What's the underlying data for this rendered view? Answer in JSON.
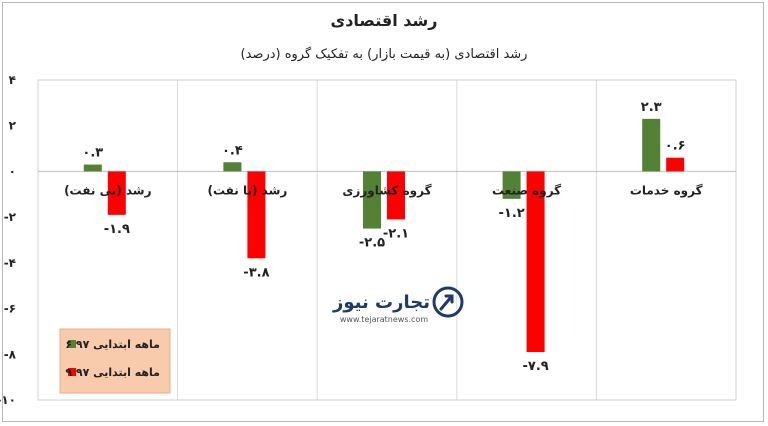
{
  "chart_data": {
    "type": "bar",
    "title": "رشد اقتصادی",
    "subtitle": "رشد اقتصادی (به قیمت بازار) به تفکیک گروه (درصد)",
    "xlabel": "",
    "ylabel": "",
    "ylim": [
      -10,
      4
    ],
    "yticks": [
      4,
      2,
      0,
      -2,
      -4,
      -6,
      -8,
      -10
    ],
    "ytick_labels": [
      "۴",
      "۲",
      "۰",
      "-۲",
      "-۴",
      "-۶",
      "-۸",
      "-۱۰"
    ],
    "grid": "vertical",
    "legend_position": "bottom-left",
    "categories": [
      "رشد (بی نفت)",
      "رشد (با نفت)",
      "گروه کشاورزی",
      "گروه صنعت",
      "گروه خدمات"
    ],
    "series": [
      {
        "name": "۶ ماهه ابتدایی ۹۷",
        "color": "#548235",
        "values": [
          0.3,
          0.4,
          -2.5,
          -1.2,
          2.3
        ],
        "labels": [
          "۰.۳",
          "۰.۴",
          "-۲.۵",
          "-۱.۲",
          "۲.۳"
        ]
      },
      {
        "name": "۹ ماهه ابتدایی ۹۷",
        "color": "#ff0000",
        "values": [
          -1.9,
          -3.8,
          -2.1,
          -7.9,
          0.6
        ],
        "labels": [
          "-۱.۹",
          "-۳.۸",
          "-۲.۱",
          "-۷.۹",
          "۰.۶"
        ]
      }
    ]
  },
  "watermark": {
    "brand": "تجارت نیوز",
    "url": "www.tejaratnews.com",
    "logo_color": "#1d3a6b"
  },
  "legend_bg": "#f8cbad"
}
